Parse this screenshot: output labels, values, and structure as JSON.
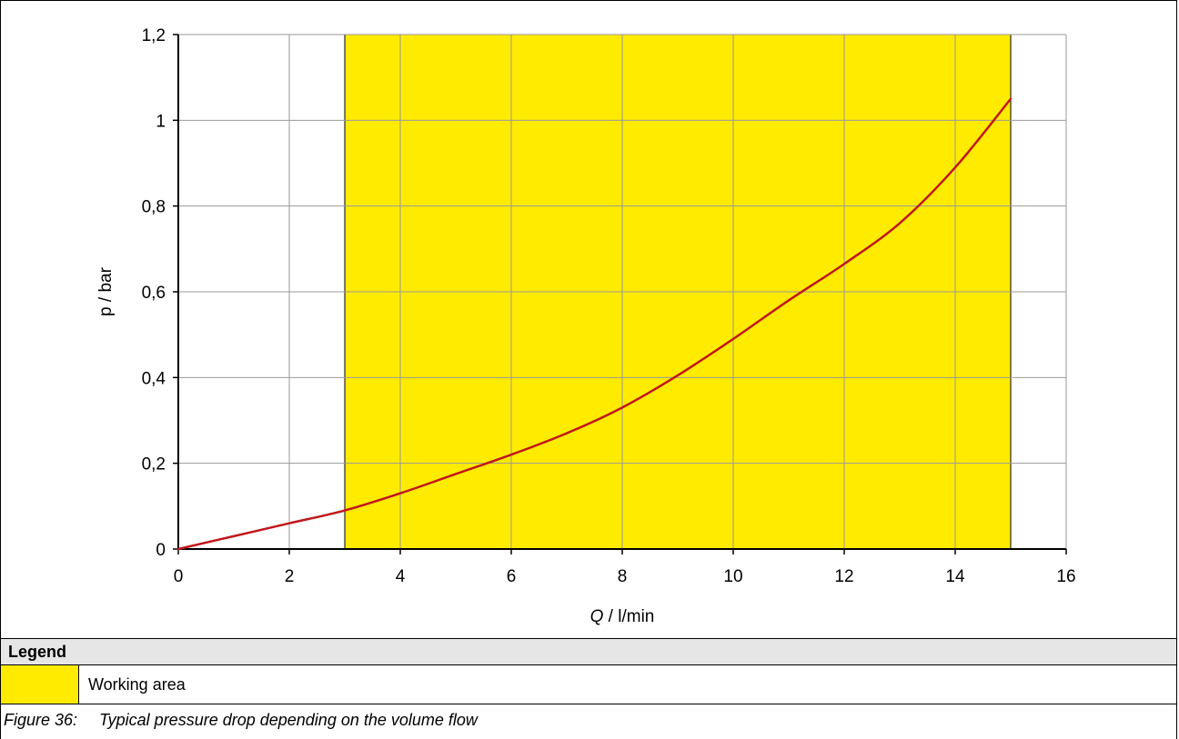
{
  "chart_data": {
    "type": "line",
    "xlabel_var": "Q",
    "xlabel_unit": " / l/min",
    "ylabel": "p / bar",
    "xlim": [
      0,
      16
    ],
    "ylim": [
      0,
      1.2
    ],
    "x_ticks": [
      "0",
      "2",
      "4",
      "6",
      "8",
      "10",
      "12",
      "14",
      "16"
    ],
    "y_ticks": [
      "0",
      "0,2",
      "0,4",
      "0,6",
      "0,8",
      "1",
      "1,2"
    ],
    "grid": true,
    "working_area": {
      "x_start": 3,
      "x_end": 15,
      "color": "#ffeb00"
    },
    "series": [
      {
        "color": "#c0171b",
        "x": [
          0,
          1,
          2,
          3,
          4,
          5,
          6,
          7,
          8,
          9,
          10,
          11,
          12,
          13,
          14,
          15
        ],
        "y": [
          0,
          0.03,
          0.06,
          0.09,
          0.13,
          0.175,
          0.22,
          0.27,
          0.33,
          0.405,
          0.49,
          0.58,
          0.665,
          0.76,
          0.89,
          1.05
        ]
      }
    ]
  },
  "legend": {
    "header": "Legend",
    "items": [
      {
        "label": "Working area",
        "color": "#ffeb00"
      }
    ]
  },
  "caption": {
    "number": "Figure 36:",
    "text": "Typical pressure drop depending on the volume flow"
  }
}
